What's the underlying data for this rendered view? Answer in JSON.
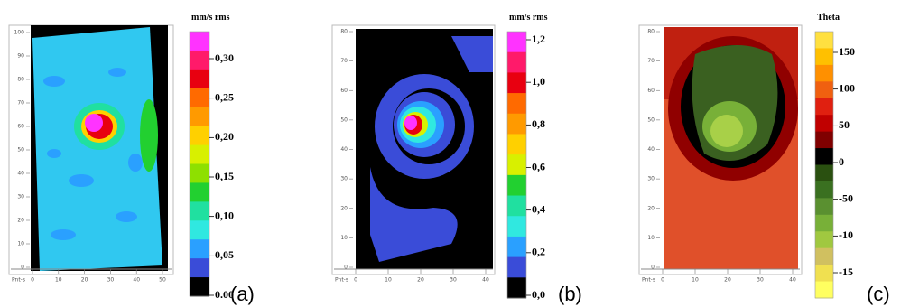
{
  "panels": [
    {
      "y_ticks": [
        "0",
        "10",
        "20",
        "30",
        "40",
        "50",
        "60",
        "70",
        "80",
        "90",
        "100"
      ],
      "x_ticks": [
        "0",
        "10",
        "20",
        "30",
        "40",
        "50"
      ],
      "corner": "Pnt-s",
      "colorbar_title": "mm/s rms",
      "colorbar_labels": [
        "0,30",
        "0,25",
        "0,20",
        "0,15",
        "0,10",
        "0,05",
        "0.00"
      ],
      "colorbar_colors": [
        "#ff33ff",
        "#ff1a6a",
        "#e80010",
        "#ff6a00",
        "#ff9a00",
        "#ffd000",
        "#d8f000",
        "#8ee000",
        "#22d030",
        "#20e0a0",
        "#30e8e0",
        "#2aa0ff",
        "#3a4cd8",
        "#000000"
      ],
      "caption": "(a)"
    },
    {
      "y_ticks": [
        "0",
        "10",
        "20",
        "30",
        "40",
        "50",
        "60",
        "70",
        "80"
      ],
      "x_ticks": [
        "0",
        "10",
        "20",
        "30",
        "40"
      ],
      "corner": "Pnt-s",
      "colorbar_title": "mm/s rms",
      "colorbar_labels": [
        "1,2",
        "1,0",
        "0,8",
        "0,6",
        "0,4",
        "0,2",
        "0,0"
      ],
      "colorbar_colors": [
        "#ff33ff",
        "#ff1a6a",
        "#e80010",
        "#ff6a00",
        "#ff9a00",
        "#ffd000",
        "#d8f000",
        "#22d030",
        "#20e0a0",
        "#30e8e0",
        "#2aa0ff",
        "#3a4cd8",
        "#000000"
      ],
      "caption": "(b)"
    },
    {
      "y_ticks": [
        "0",
        "10",
        "20",
        "30",
        "40",
        "50",
        "60",
        "70",
        "80"
      ],
      "x_ticks": [
        "0",
        "10",
        "20",
        "30",
        "40"
      ],
      "corner": "Pnt-s",
      "colorbar_title": "Theta",
      "colorbar_labels": [
        "150",
        "100",
        "50",
        "0",
        "-50",
        "-10",
        "-15"
      ],
      "colorbar_colors": [
        "#ffe040",
        "#ffc000",
        "#ff9000",
        "#f06010",
        "#e02010",
        "#c00000",
        "#800000",
        "#000000",
        "#2a5010",
        "#3a7020",
        "#5a9030",
        "#78b038",
        "#a0c840",
        "#d0c060",
        "#f0e050",
        "#ffff60"
      ],
      "caption": "(c)"
    }
  ]
}
